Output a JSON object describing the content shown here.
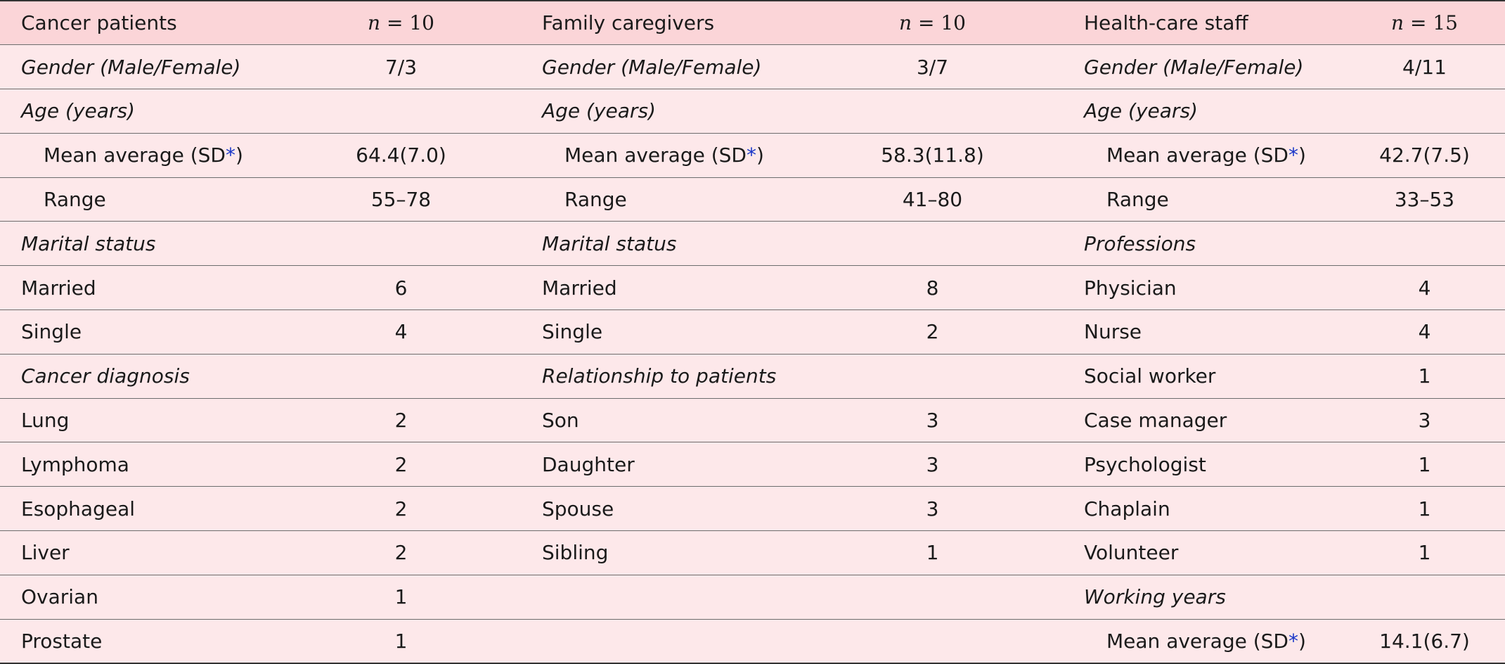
{
  "header": {
    "col1": {
      "title": "Cancer patients",
      "n_var": "n",
      "n_eq": " = 10"
    },
    "col2": {
      "title": "Family caregivers",
      "n_var": "n",
      "n_eq": " = 10"
    },
    "col3": {
      "title": "Health-care staff",
      "n_var": "n",
      "n_eq": " = 15"
    }
  },
  "rows": [
    {
      "c1": {
        "label": "Gender (Male/Female)",
        "value": "7/3"
      },
      "c2": {
        "label": "Gender (Male/Female)",
        "value": "3/7"
      },
      "c3": {
        "label": "Gender (Male/Female)",
        "value": "4/11"
      }
    },
    {
      "c1": {
        "label": "Age (years)",
        "value": ""
      },
      "c2": {
        "label": "Age (years)",
        "value": ""
      },
      "c3": {
        "label": "Age (years)",
        "value": ""
      }
    },
    {
      "c1": {
        "label": "Mean average (SD",
        "star": "*",
        "close": ")",
        "value": "64.4(7.0)"
      },
      "c2": {
        "label": "Mean average (SD",
        "star": "*",
        "close": ")",
        "value": "58.3(11.8)"
      },
      "c3": {
        "label": "Mean average (SD",
        "star": "*",
        "close": ")",
        "value": "42.7(7.5)"
      }
    },
    {
      "c1": {
        "label": "Range",
        "value": "55–78"
      },
      "c2": {
        "label": "Range",
        "value": "41–80"
      },
      "c3": {
        "label": "Range",
        "value": "33–53"
      }
    },
    {
      "c1": {
        "label": "Marital status",
        "value": ""
      },
      "c2": {
        "label": "Marital status",
        "value": ""
      },
      "c3": {
        "label": "Professions",
        "value": ""
      }
    },
    {
      "c1": {
        "label": "Married",
        "value": "6"
      },
      "c2": {
        "label": "Married",
        "value": "8"
      },
      "c3": {
        "label": "Physician",
        "value": "4"
      }
    },
    {
      "c1": {
        "label": "Single",
        "value": "4"
      },
      "c2": {
        "label": "Single",
        "value": "2"
      },
      "c3": {
        "label": "Nurse",
        "value": "4"
      }
    },
    {
      "c1": {
        "label": "Cancer diagnosis",
        "value": ""
      },
      "c2": {
        "label": "Relationship to patients",
        "value": ""
      },
      "c3": {
        "label": "Social worker",
        "value": "1"
      }
    },
    {
      "c1": {
        "label": "Lung",
        "value": "2"
      },
      "c2": {
        "label": "Son",
        "value": "3"
      },
      "c3": {
        "label": "Case manager",
        "value": "3"
      }
    },
    {
      "c1": {
        "label": "Lymphoma",
        "value": "2"
      },
      "c2": {
        "label": "Daughter",
        "value": "3"
      },
      "c3": {
        "label": "Psychologist",
        "value": "1"
      }
    },
    {
      "c1": {
        "label": "Esophageal",
        "value": "2"
      },
      "c2": {
        "label": "Spouse",
        "value": "3"
      },
      "c3": {
        "label": "Chaplain",
        "value": "1"
      }
    },
    {
      "c1": {
        "label": "Liver",
        "value": "2"
      },
      "c2": {
        "label": "Sibling",
        "value": "1"
      },
      "c3": {
        "label": "Volunteer",
        "value": "1"
      }
    },
    {
      "c1": {
        "label": "Ovarian",
        "value": "1"
      },
      "c2": {
        "label": "",
        "value": ""
      },
      "c3": {
        "label": "Working years",
        "value": ""
      }
    },
    {
      "c1": {
        "label": "Prostate",
        "value": "1"
      },
      "c2": {
        "label": "",
        "value": ""
      },
      "c3": {
        "label": "Mean average (SD",
        "star": "*",
        "close": ")",
        "value": "14.1(6.7)"
      }
    }
  ],
  "colors": {
    "header_bg": "#fbd5d8",
    "row_bg": "#fde8ea",
    "footnote_star": "#1a36c8"
  }
}
